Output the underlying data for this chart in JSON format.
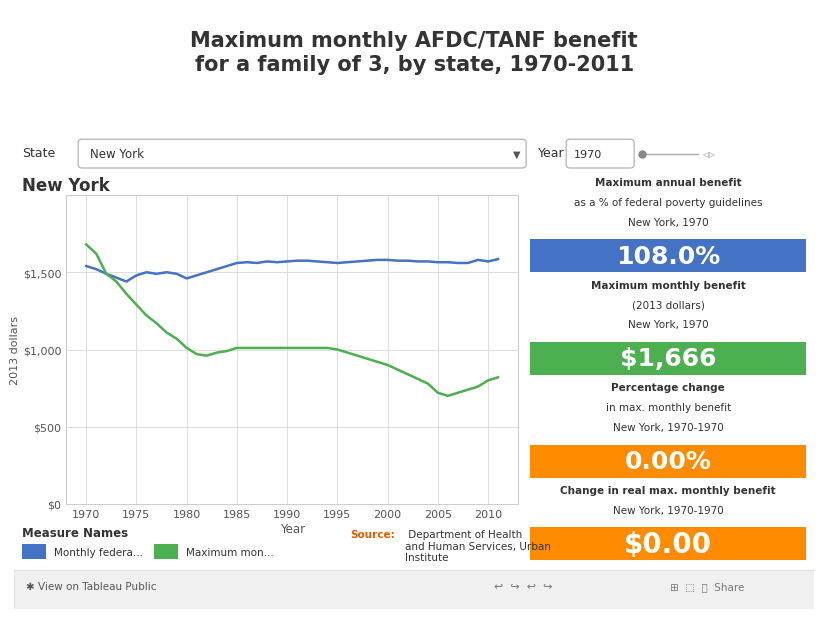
{
  "title_line1": "Maximum monthly AFDC/TANF benefit",
  "title_line2": "for a family of 3, by state, 1970-2011",
  "state_label": "New York",
  "chart_title": "New York",
  "ylabel": "2013 dollars",
  "xlabel": "Year",
  "years": [
    1970,
    1971,
    1972,
    1973,
    1974,
    1975,
    1976,
    1977,
    1978,
    1979,
    1980,
    1981,
    1982,
    1983,
    1984,
    1985,
    1986,
    1987,
    1988,
    1989,
    1990,
    1991,
    1992,
    1993,
    1994,
    1995,
    1996,
    1997,
    1998,
    1999,
    2000,
    2001,
    2002,
    2003,
    2004,
    2005,
    2006,
    2007,
    2008,
    2009,
    2010,
    2011
  ],
  "blue_line": [
    1540,
    1520,
    1490,
    1465,
    1440,
    1480,
    1500,
    1490,
    1500,
    1490,
    1460,
    1480,
    1500,
    1520,
    1540,
    1560,
    1565,
    1560,
    1570,
    1565,
    1570,
    1575,
    1575,
    1570,
    1565,
    1560,
    1565,
    1570,
    1575,
    1580,
    1580,
    1575,
    1575,
    1570,
    1570,
    1565,
    1565,
    1560,
    1560,
    1580,
    1570,
    1585
  ],
  "green_line": [
    1680,
    1620,
    1490,
    1440,
    1360,
    1290,
    1220,
    1170,
    1110,
    1070,
    1010,
    970,
    960,
    980,
    990,
    1010,
    1010,
    1010,
    1010,
    1010,
    1010,
    1010,
    1010,
    1010,
    1010,
    1000,
    980,
    960,
    940,
    920,
    900,
    870,
    840,
    810,
    780,
    720,
    700,
    720,
    740,
    760,
    800,
    820
  ],
  "blue_color": "#4472C4",
  "green_color": "#4CAF50",
  "orange_color": "#FF8C00",
  "ylim": [
    0,
    2000
  ],
  "yticks": [
    0,
    500,
    1000,
    1500
  ],
  "ytick_labels": [
    "$0",
    "$500",
    "$1,000",
    "$1,500"
  ],
  "xticks": [
    1970,
    1975,
    1980,
    1985,
    1990,
    1995,
    2000,
    2005,
    2010
  ],
  "bg_color": "#ffffff",
  "stat1_label1": "Maximum annual benefit",
  "stat1_label2": "as a % of federal poverty guidelines",
  "stat1_label3": "New York, 1970",
  "stat1_value": "108.0%",
  "stat1_color": "#4472C4",
  "stat2_label1": "Maximum monthly benefit",
  "stat2_label2": "(2013 dollars)",
  "stat2_label3": "New York, 1970",
  "stat2_value": "$1,666",
  "stat2_color": "#4CAF50",
  "stat3_label1": "Percentage change",
  "stat3_label2": "in max. monthly benefit",
  "stat3_label3": "New York, 1970-1970",
  "stat3_value": "0.00%",
  "stat3_color": "#FF8C00",
  "stat4_label1": "Change in real max. monthly benefit",
  "stat4_label2": "New York, 1970-1970",
  "stat4_value": "$0.00",
  "stat4_color": "#FF8C00",
  "legend_blue_label": "Monthly federa...",
  "legend_green_label": "Maximum mon...",
  "source_bold": "Source:",
  "source_rest": " Department of Health\nand Human Services, Urban\nInstitute",
  "state_filter_text": "New York",
  "year_filter_text": "1970"
}
